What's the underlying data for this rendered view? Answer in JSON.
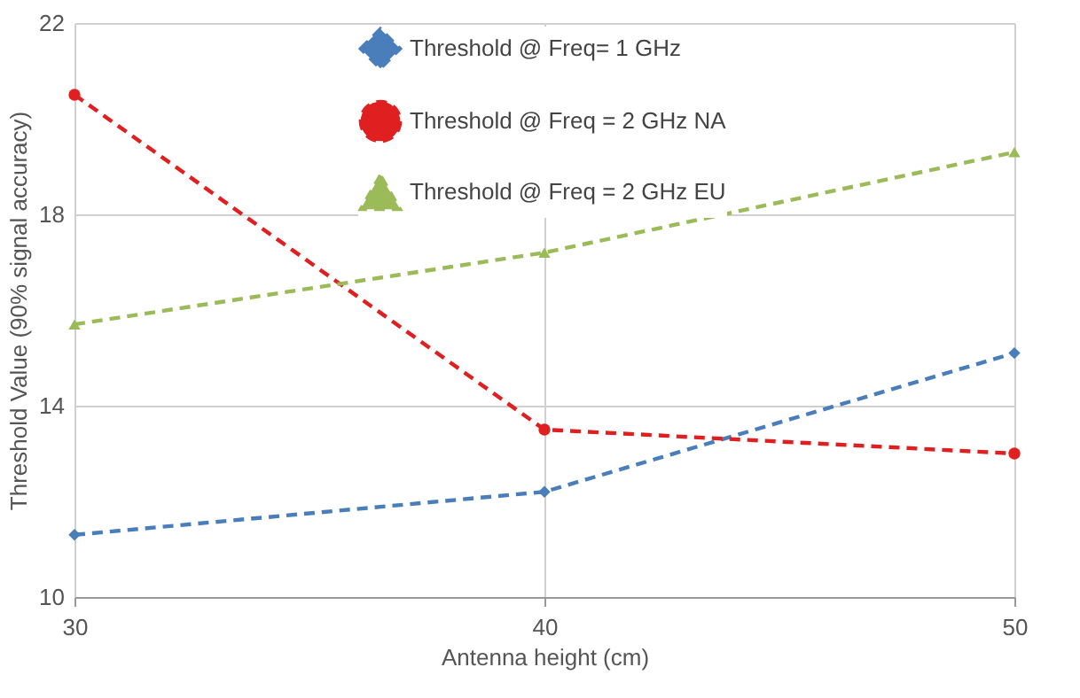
{
  "chart_data": {
    "type": "line",
    "xlabel": "Antenna height (cm)",
    "ylabel": "Threshold Value (90% signal accuracy)",
    "x": [
      30,
      40,
      50
    ],
    "xlim": [
      30,
      50
    ],
    "xticks": [
      30,
      40,
      50
    ],
    "ylim": [
      10,
      22
    ],
    "yticks": [
      10,
      14,
      18,
      22
    ],
    "grid": true,
    "legend": "top",
    "line_style": "dashed",
    "series": [
      {
        "name": "Threshold @ Freq= 1 GHz",
        "color": "#4a7ebb",
        "marker": "diamond",
        "values": [
          11.3,
          12.2,
          15.1
        ]
      },
      {
        "name": "Threshold @ Freq = 2 GHz NA",
        "color": "#e02020",
        "marker": "circle",
        "values": [
          20.5,
          13.5,
          13.0
        ]
      },
      {
        "name": "Threshold @ Freq = 2 GHz EU",
        "color": "#9bbb59",
        "marker": "triangle",
        "values": [
          15.7,
          17.2,
          19.3
        ]
      }
    ]
  }
}
